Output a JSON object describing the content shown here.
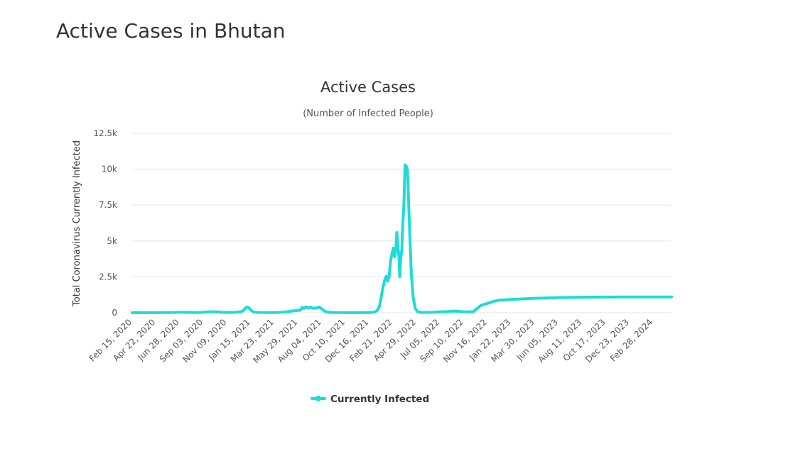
{
  "page": {
    "title": "Active Cases in Bhutan"
  },
  "chart_data": {
    "type": "line",
    "title": "Active Cases",
    "subtitle": "(Number of Infected People)",
    "xlabel": "",
    "ylabel": "Total Coronavirus Currently Infected",
    "ylim": [
      0,
      12500
    ],
    "y_ticks": [
      "0",
      "2.5k",
      "5k",
      "7.5k",
      "10k",
      "12.5k"
    ],
    "y_tick_values": [
      0,
      2500,
      5000,
      7500,
      10000,
      12500
    ],
    "x_ticks": [
      "Feb 15, 2020",
      "Apr 22, 2020",
      "Jun 28, 2020",
      "Sep 03, 2020",
      "Nov 09, 2020",
      "Jan 15, 2021",
      "Mar 23, 2021",
      "May 29, 2021",
      "Aug 04, 2021",
      "Oct 10, 2021",
      "Dec 16, 2021",
      "Feb 21, 2022",
      "Apr 29, 2022",
      "Jul 05, 2022",
      "Sep 10, 2022",
      "Nov 16, 2022",
      "Jan 22, 2023",
      "Mar 30, 2023",
      "Jun 05, 2023",
      "Aug 11, 2023",
      "Oct 17, 2023",
      "Dec 23, 2023",
      "Feb 28, 2024"
    ],
    "x_range": [
      "Feb 15, 2020",
      "Apr 20, 2024"
    ],
    "grid": true,
    "legend_position": "bottom",
    "series": [
      {
        "name": "Currently Infected",
        "color": "#1ddcd8",
        "points": [
          [
            "Feb 15, 2020",
            0
          ],
          [
            "Mar 20, 2020",
            3
          ],
          [
            "Apr 22, 2020",
            6
          ],
          [
            "May 25, 2020",
            12
          ],
          [
            "Jun 28, 2020",
            30
          ],
          [
            "Jul 30, 2020",
            25
          ],
          [
            "Aug 20, 2020",
            10
          ],
          [
            "Sep 03, 2020",
            30
          ],
          [
            "Sep 20, 2020",
            70
          ],
          [
            "Oct 10, 2020",
            60
          ],
          [
            "Oct 25, 2020",
            30
          ],
          [
            "Nov 09, 2020",
            20
          ],
          [
            "Dec 01, 2020",
            30
          ],
          [
            "Dec 20, 2020",
            80
          ],
          [
            "Dec 26, 2020",
            170
          ],
          [
            "Jan 01, 2021",
            330
          ],
          [
            "Jan 05, 2021",
            400
          ],
          [
            "Jan 10, 2021",
            350
          ],
          [
            "Jan 15, 2021",
            200
          ],
          [
            "Jan 22, 2021",
            60
          ],
          [
            "Feb 05, 2021",
            20
          ],
          [
            "Mar 23, 2021",
            10
          ],
          [
            "Apr 15, 2021",
            40
          ],
          [
            "May 01, 2021",
            80
          ],
          [
            "May 15, 2021",
            130
          ],
          [
            "May 29, 2021",
            160
          ],
          [
            "Jun 05, 2021",
            180
          ],
          [
            "Jun 10, 2021",
            380
          ],
          [
            "Jun 15, 2021",
            300
          ],
          [
            "Jun 20, 2021",
            400
          ],
          [
            "Jun 28, 2021",
            320
          ],
          [
            "Jul 03, 2021",
            400
          ],
          [
            "Jul 10, 2021",
            310
          ],
          [
            "Jul 20, 2021",
            330
          ],
          [
            "Jul 28, 2021",
            390
          ],
          [
            "Aug 04, 2021",
            280
          ],
          [
            "Aug 12, 2021",
            120
          ],
          [
            "Aug 22, 2021",
            30
          ],
          [
            "Sep 10, 2021",
            10
          ],
          [
            "Oct 10, 2021",
            5
          ],
          [
            "Nov 15, 2021",
            5
          ],
          [
            "Dec 16, 2021",
            10
          ],
          [
            "Dec 31, 2021",
            40
          ],
          [
            "Jan 08, 2022",
            150
          ],
          [
            "Jan 14, 2022",
            400
          ],
          [
            "Jan 19, 2022",
            1000
          ],
          [
            "Jan 24, 2022",
            1700
          ],
          [
            "Jan 30, 2022",
            2300
          ],
          [
            "Feb 03, 2022",
            2550
          ],
          [
            "Feb 07, 2022",
            2200
          ],
          [
            "Feb 11, 2022",
            2500
          ],
          [
            "Feb 15, 2022",
            3600
          ],
          [
            "Feb 19, 2022",
            4100
          ],
          [
            "Feb 23, 2022",
            4500
          ],
          [
            "Feb 27, 2022",
            3900
          ],
          [
            "Mar 02, 2022",
            4400
          ],
          [
            "Mar 05, 2022",
            5600
          ],
          [
            "Mar 08, 2022",
            4600
          ],
          [
            "Mar 11, 2022",
            3900
          ],
          [
            "Mar 13, 2022",
            2500
          ],
          [
            "Mar 16, 2022",
            3800
          ],
          [
            "Mar 19, 2022",
            4400
          ],
          [
            "Mar 22, 2022",
            6300
          ],
          [
            "Mar 25, 2022",
            7600
          ],
          [
            "Mar 28, 2022",
            10300
          ],
          [
            "Apr 01, 2022",
            10200
          ],
          [
            "Apr 04, 2022",
            9900
          ],
          [
            "Apr 07, 2022",
            7800
          ],
          [
            "Apr 11, 2022",
            5200
          ],
          [
            "Apr 15, 2022",
            2700
          ],
          [
            "Apr 20, 2022",
            1100
          ],
          [
            "Apr 26, 2022",
            300
          ],
          [
            "May 03, 2022",
            60
          ],
          [
            "May 15, 2022",
            20
          ],
          [
            "Jun 15, 2022",
            30
          ],
          [
            "Jul 05, 2022",
            60
          ],
          [
            "Jul 25, 2022",
            80
          ],
          [
            "Aug 12, 2022",
            120
          ],
          [
            "Aug 25, 2022",
            100
          ],
          [
            "Sep 10, 2022",
            70
          ],
          [
            "Sep 28, 2022",
            60
          ],
          [
            "Oct 08, 2022",
            80
          ],
          [
            "Oct 18, 2022",
            300
          ],
          [
            "Oct 28, 2022",
            500
          ],
          [
            "Nov 16, 2022",
            650
          ],
          [
            "Dec 05, 2022",
            800
          ],
          [
            "Dec 22, 2022",
            880
          ],
          [
            "Jan 22, 2023",
            930
          ],
          [
            "Mar 30, 2023",
            1010
          ],
          [
            "Jun 05, 2023",
            1050
          ],
          [
            "Aug 11, 2023",
            1080
          ],
          [
            "Oct 17, 2023",
            1090
          ],
          [
            "Dec 23, 2023",
            1100
          ],
          [
            "Feb 28, 2024",
            1100
          ],
          [
            "Apr 20, 2024",
            1100
          ]
        ]
      }
    ]
  }
}
